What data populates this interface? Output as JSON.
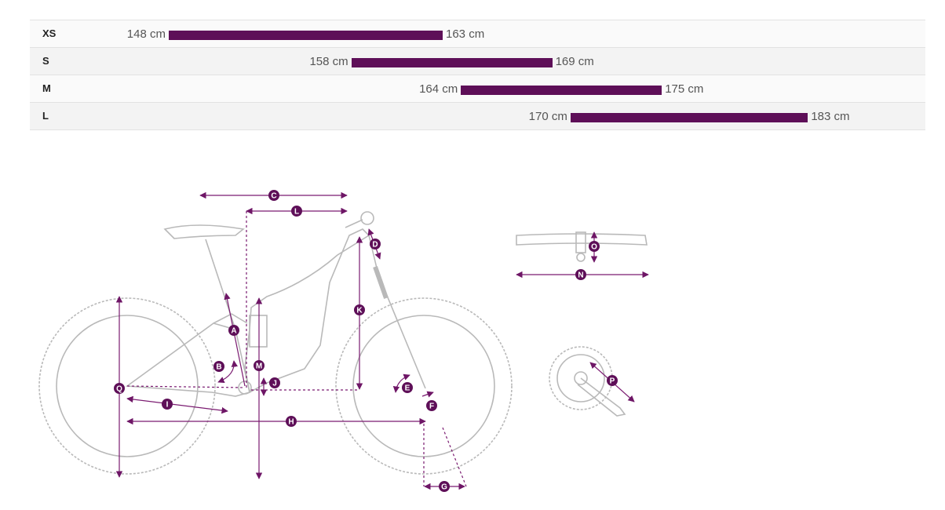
{
  "chart_data": {
    "type": "bar",
    "categories": [
      "XS",
      "S",
      "M",
      "L"
    ],
    "series": [
      {
        "values": [
          [
            148,
            163
          ],
          [
            158,
            169
          ],
          [
            164,
            175
          ],
          [
            170,
            183
          ]
        ]
      }
    ],
    "unit": "cm",
    "xlim": [
      140,
      187
    ],
    "grid": false,
    "legend": "none",
    "bar_color": "#5e0f58"
  },
  "rows": [
    {
      "size": "XS",
      "min_label": "148 cm",
      "max_label": "163 cm"
    },
    {
      "size": "S",
      "min_label": "158 cm",
      "max_label": "169 cm"
    },
    {
      "size": "M",
      "min_label": "164 cm",
      "max_label": "175 cm"
    },
    {
      "size": "L",
      "min_label": "170 cm",
      "max_label": "183 cm"
    }
  ],
  "geometry": {
    "dimension_labels": [
      "A",
      "B",
      "C",
      "D",
      "E",
      "F",
      "G",
      "H",
      "I",
      "J",
      "K",
      "L",
      "M",
      "N",
      "O",
      "P",
      "Q"
    ],
    "accent_color": "#5e0f58",
    "line_color": "#7a1a70",
    "drawing_color": "#b9b9b9"
  }
}
